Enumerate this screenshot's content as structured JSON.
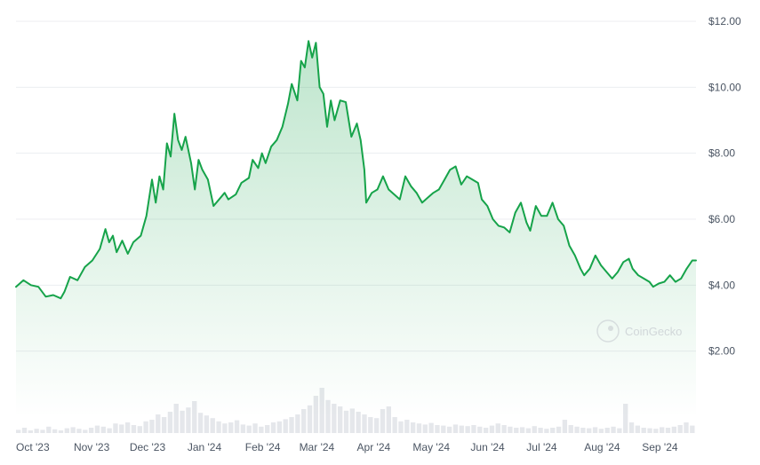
{
  "watermark": {
    "text": "CoinGecko",
    "icon": "coingecko-logo-icon"
  },
  "colors": {
    "line": "#16a34a",
    "fill": "#16a34a",
    "grid": "#eceef1",
    "volume": "#e5e7eb",
    "text": "#4b5563"
  },
  "chart_data": {
    "type": "area",
    "title": "",
    "xlabel": "",
    "ylabel": "",
    "ylim": [
      0,
      12
    ],
    "y_axis_position": "right",
    "y_ticks": [
      2,
      4,
      6,
      8,
      10,
      12
    ],
    "y_tick_labels": [
      "$2.00",
      "$4.00",
      "$6.00",
      "$8.00",
      "$10.00",
      "$12.00"
    ],
    "x_range": [
      "2023-10-01",
      "2024-09-30"
    ],
    "x_tick_labels": [
      {
        "date": "2023-10-01",
        "label": "Oct '23"
      },
      {
        "date": "2023-11-01",
        "label": "Nov '23"
      },
      {
        "date": "2023-12-01",
        "label": "Dec '23"
      },
      {
        "date": "2024-01-01",
        "label": "Jan '24"
      },
      {
        "date": "2024-02-01",
        "label": "Feb '24"
      },
      {
        "date": "2024-03-01",
        "label": "Mar '24"
      },
      {
        "date": "2024-04-01",
        "label": "Apr '24"
      },
      {
        "date": "2024-05-01",
        "label": "May '24"
      },
      {
        "date": "2024-06-01",
        "label": "Jun '24"
      },
      {
        "date": "2024-07-01",
        "label": "Jul '24"
      },
      {
        "date": "2024-08-01",
        "label": "Aug '24"
      },
      {
        "date": "2024-09-01",
        "label": "Sep '24"
      }
    ],
    "grid": true,
    "legend": "none",
    "series": [
      {
        "values": [
          [
            "2023-10-01",
            3.95
          ],
          [
            "2023-10-05",
            4.15
          ],
          [
            "2023-10-09",
            4.0
          ],
          [
            "2023-10-13",
            3.95
          ],
          [
            "2023-10-17",
            3.65
          ],
          [
            "2023-10-21",
            3.7
          ],
          [
            "2023-10-25",
            3.6
          ],
          [
            "2023-10-27",
            3.8
          ],
          [
            "2023-10-30",
            4.25
          ],
          [
            "2023-11-03",
            4.15
          ],
          [
            "2023-11-07",
            4.55
          ],
          [
            "2023-11-11",
            4.75
          ],
          [
            "2023-11-15",
            5.1
          ],
          [
            "2023-11-18",
            5.7
          ],
          [
            "2023-11-20",
            5.3
          ],
          [
            "2023-11-22",
            5.5
          ],
          [
            "2023-11-24",
            5.0
          ],
          [
            "2023-11-27",
            5.35
          ],
          [
            "2023-11-30",
            4.95
          ],
          [
            "2023-12-03",
            5.3
          ],
          [
            "2023-12-07",
            5.5
          ],
          [
            "2023-12-10",
            6.1
          ],
          [
            "2023-12-13",
            7.2
          ],
          [
            "2023-12-15",
            6.5
          ],
          [
            "2023-12-17",
            7.3
          ],
          [
            "2023-12-19",
            6.9
          ],
          [
            "2023-12-21",
            8.3
          ],
          [
            "2023-12-23",
            7.9
          ],
          [
            "2023-12-25",
            9.2
          ],
          [
            "2023-12-27",
            8.4
          ],
          [
            "2023-12-29",
            8.1
          ],
          [
            "2023-12-31",
            8.5
          ],
          [
            "2024-01-03",
            7.7
          ],
          [
            "2024-01-05",
            6.9
          ],
          [
            "2024-01-07",
            7.8
          ],
          [
            "2024-01-09",
            7.5
          ],
          [
            "2024-01-12",
            7.2
          ],
          [
            "2024-01-15",
            6.4
          ],
          [
            "2024-01-18",
            6.6
          ],
          [
            "2024-01-21",
            6.8
          ],
          [
            "2024-01-23",
            6.6
          ],
          [
            "2024-01-27",
            6.75
          ],
          [
            "2024-01-30",
            7.1
          ],
          [
            "2024-02-03",
            7.25
          ],
          [
            "2024-02-05",
            7.8
          ],
          [
            "2024-02-08",
            7.55
          ],
          [
            "2024-02-10",
            8.0
          ],
          [
            "2024-02-12",
            7.7
          ],
          [
            "2024-02-15",
            8.2
          ],
          [
            "2024-02-18",
            8.4
          ],
          [
            "2024-02-21",
            8.8
          ],
          [
            "2024-02-24",
            9.5
          ],
          [
            "2024-02-26",
            10.1
          ],
          [
            "2024-02-29",
            9.6
          ],
          [
            "2024-03-02",
            10.8
          ],
          [
            "2024-03-04",
            10.6
          ],
          [
            "2024-03-06",
            11.4
          ],
          [
            "2024-03-08",
            10.9
          ],
          [
            "2024-03-10",
            11.35
          ],
          [
            "2024-03-12",
            10.0
          ],
          [
            "2024-03-14",
            9.8
          ],
          [
            "2024-03-16",
            8.8
          ],
          [
            "2024-03-18",
            9.6
          ],
          [
            "2024-03-20",
            9.0
          ],
          [
            "2024-03-23",
            9.6
          ],
          [
            "2024-03-26",
            9.55
          ],
          [
            "2024-03-29",
            8.5
          ],
          [
            "2024-04-01",
            8.9
          ],
          [
            "2024-04-03",
            8.4
          ],
          [
            "2024-04-05",
            7.5
          ],
          [
            "2024-04-06",
            6.5
          ],
          [
            "2024-04-09",
            6.8
          ],
          [
            "2024-04-12",
            6.9
          ],
          [
            "2024-04-15",
            7.3
          ],
          [
            "2024-04-18",
            6.9
          ],
          [
            "2024-04-21",
            6.75
          ],
          [
            "2024-04-24",
            6.6
          ],
          [
            "2024-04-27",
            7.3
          ],
          [
            "2024-04-30",
            7.0
          ],
          [
            "2024-05-03",
            6.8
          ],
          [
            "2024-05-06",
            6.5
          ],
          [
            "2024-05-09",
            6.65
          ],
          [
            "2024-05-12",
            6.8
          ],
          [
            "2024-05-15",
            6.9
          ],
          [
            "2024-05-18",
            7.2
          ],
          [
            "2024-05-21",
            7.5
          ],
          [
            "2024-05-24",
            7.6
          ],
          [
            "2024-05-27",
            7.05
          ],
          [
            "2024-05-30",
            7.3
          ],
          [
            "2024-06-02",
            7.2
          ],
          [
            "2024-06-05",
            7.1
          ],
          [
            "2024-06-07",
            6.6
          ],
          [
            "2024-06-10",
            6.4
          ],
          [
            "2024-06-13",
            6.0
          ],
          [
            "2024-06-16",
            5.8
          ],
          [
            "2024-06-19",
            5.75
          ],
          [
            "2024-06-22",
            5.6
          ],
          [
            "2024-06-25",
            6.2
          ],
          [
            "2024-06-28",
            6.5
          ],
          [
            "2024-07-01",
            5.9
          ],
          [
            "2024-07-03",
            5.65
          ],
          [
            "2024-07-06",
            6.4
          ],
          [
            "2024-07-09",
            6.1
          ],
          [
            "2024-07-12",
            6.1
          ],
          [
            "2024-07-15",
            6.5
          ],
          [
            "2024-07-18",
            6.0
          ],
          [
            "2024-07-21",
            5.8
          ],
          [
            "2024-07-24",
            5.2
          ],
          [
            "2024-07-27",
            4.9
          ],
          [
            "2024-07-30",
            4.5
          ],
          [
            "2024-08-01",
            4.3
          ],
          [
            "2024-08-04",
            4.5
          ],
          [
            "2024-08-07",
            4.9
          ],
          [
            "2024-08-10",
            4.6
          ],
          [
            "2024-08-13",
            4.4
          ],
          [
            "2024-08-16",
            4.2
          ],
          [
            "2024-08-19",
            4.4
          ],
          [
            "2024-08-22",
            4.7
          ],
          [
            "2024-08-25",
            4.8
          ],
          [
            "2024-08-27",
            4.5
          ],
          [
            "2024-08-30",
            4.3
          ],
          [
            "2024-09-02",
            4.2
          ],
          [
            "2024-09-05",
            4.1
          ],
          [
            "2024-09-07",
            3.95
          ],
          [
            "2024-09-10",
            4.05
          ],
          [
            "2024-09-13",
            4.1
          ],
          [
            "2024-09-16",
            4.3
          ],
          [
            "2024-09-19",
            4.1
          ],
          [
            "2024-09-22",
            4.2
          ],
          [
            "2024-09-25",
            4.5
          ],
          [
            "2024-09-28",
            4.75
          ],
          [
            "2024-09-30",
            4.75
          ]
        ],
        "volume_relative": [
          0.06,
          0.1,
          0.05,
          0.08,
          0.06,
          0.12,
          0.07,
          0.05,
          0.09,
          0.11,
          0.08,
          0.06,
          0.1,
          0.14,
          0.12,
          0.09,
          0.18,
          0.16,
          0.2,
          0.15,
          0.13,
          0.22,
          0.25,
          0.35,
          0.3,
          0.4,
          0.55,
          0.42,
          0.48,
          0.6,
          0.38,
          0.33,
          0.28,
          0.22,
          0.18,
          0.2,
          0.24,
          0.16,
          0.14,
          0.18,
          0.12,
          0.15,
          0.2,
          0.22,
          0.26,
          0.3,
          0.35,
          0.45,
          0.52,
          0.7,
          0.85,
          0.62,
          0.55,
          0.5,
          0.42,
          0.46,
          0.4,
          0.35,
          0.3,
          0.28,
          0.45,
          0.5,
          0.3,
          0.22,
          0.25,
          0.2,
          0.18,
          0.16,
          0.19,
          0.15,
          0.14,
          0.12,
          0.16,
          0.14,
          0.13,
          0.15,
          0.12,
          0.1,
          0.14,
          0.18,
          0.15,
          0.12,
          0.1,
          0.11,
          0.09,
          0.13,
          0.1,
          0.08,
          0.1,
          0.12,
          0.25,
          0.15,
          0.12,
          0.1,
          0.09,
          0.11,
          0.08,
          0.1,
          0.12,
          0.09,
          0.55,
          0.2,
          0.14,
          0.1,
          0.09,
          0.08,
          0.11,
          0.1,
          0.12,
          0.15,
          0.2,
          0.14
        ]
      }
    ]
  }
}
